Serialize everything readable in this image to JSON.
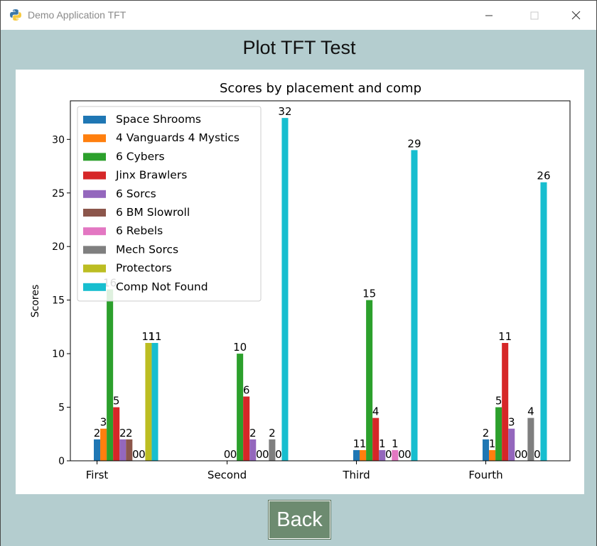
{
  "window": {
    "title": "Demo Application TFT",
    "minimize_icon": "minimize-icon",
    "maximize_icon": "maximize-icon",
    "close_icon": "close-icon",
    "app_icon": "python-icon"
  },
  "page": {
    "heading": "Plot TFT Test",
    "back_label": "Back",
    "background_color": "#b4cdcf",
    "button_color": "#6d8b70"
  },
  "chart_data": {
    "type": "bar",
    "title": "Scores by placement and comp",
    "xlabel": "",
    "ylabel": "Scores",
    "ylim": [
      0,
      33.6
    ],
    "yticks": [
      0,
      5,
      10,
      15,
      20,
      25,
      30
    ],
    "categories": [
      "First",
      "Second",
      "Third",
      "Fourth"
    ],
    "legend_position": "upper-left",
    "series": [
      {
        "name": "Space Shrooms",
        "color": "#1f77b4",
        "values": [
          2,
          0,
          1,
          2
        ],
        "labels": [
          "2",
          "0",
          "1",
          "2"
        ]
      },
      {
        "name": "4 Vanguards 4 Mystics",
        "color": "#ff7f0e",
        "values": [
          3,
          0,
          1,
          1
        ],
        "labels": [
          "3",
          "0",
          "1",
          "1"
        ]
      },
      {
        "name": "6 Cybers",
        "color": "#2ca02c",
        "values": [
          16,
          10,
          15,
          5
        ],
        "labels": [
          "16",
          "10",
          "15",
          "5"
        ]
      },
      {
        "name": "Jinx Brawlers",
        "color": "#d62728",
        "values": [
          5,
          6,
          4,
          11
        ],
        "labels": [
          "5",
          "6",
          "4",
          "11"
        ]
      },
      {
        "name": "6 Sorcs",
        "color": "#9467bd",
        "values": [
          2,
          2,
          1,
          3
        ],
        "labels": [
          "2",
          "2",
          "1",
          "3"
        ]
      },
      {
        "name": "6 BM Slowroll",
        "color": "#8c564b",
        "values": [
          2,
          0,
          0,
          0
        ],
        "labels": [
          "2",
          "0",
          "0",
          "0"
        ]
      },
      {
        "name": "6 Rebels",
        "color": "#e377c2",
        "values": [
          0,
          0,
          1,
          0
        ],
        "labels": [
          "0",
          "0",
          "1",
          "0"
        ]
      },
      {
        "name": "Mech Sorcs",
        "color": "#7f7f7f",
        "values": [
          0,
          2,
          0,
          4
        ],
        "labels": [
          "0",
          "2",
          "0",
          "4"
        ]
      },
      {
        "name": "Protectors",
        "color": "#bcbd22",
        "values": [
          11,
          0,
          0,
          0
        ],
        "labels": [
          "11",
          "0",
          "0",
          "0"
        ]
      },
      {
        "name": "Comp Not Found",
        "color": "#17becf",
        "values": [
          11,
          32,
          29,
          26
        ],
        "labels": [
          "11",
          "32",
          "29",
          "26"
        ]
      }
    ]
  }
}
